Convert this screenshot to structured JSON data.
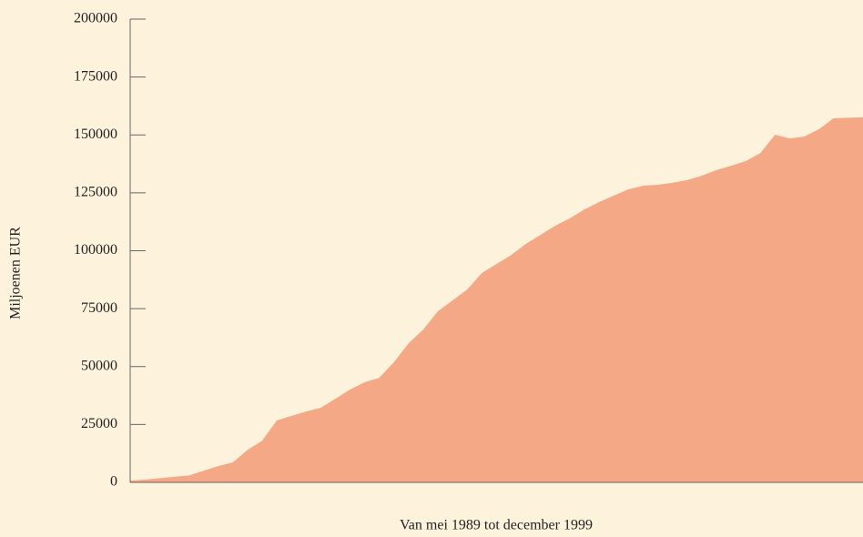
{
  "chart_data": {
    "type": "area",
    "ylabel": "Miljoenen EUR",
    "xlabel": "Van mei 1989 tot december 1999",
    "categories": [
      null,
      null,
      null,
      null,
      null,
      null,
      null,
      null,
      null,
      null,
      null,
      null,
      null,
      null,
      null,
      null,
      null,
      null,
      null,
      null,
      null,
      null,
      null,
      null,
      null,
      null,
      null,
      null,
      null,
      null,
      null,
      null,
      null,
      null,
      null,
      null,
      null,
      null,
      null,
      null,
      null,
      null,
      null,
      null,
      null,
      null,
      null,
      null,
      null,
      null,
      null
    ],
    "series": [
      {
        "name": null,
        "color": "#f5a886",
        "values": [
          800,
          1200,
          1800,
          2400,
          3000,
          5000,
          7000,
          8600,
          14000,
          18000,
          26700,
          28700,
          30600,
          32200,
          36100,
          40100,
          43200,
          45200,
          51900,
          60100,
          66000,
          73900,
          78600,
          83300,
          90400,
          94300,
          98200,
          103000,
          106900,
          110800,
          114000,
          117900,
          121000,
          123800,
          126500,
          128100,
          128500,
          129300,
          130500,
          132400,
          134800,
          136700,
          138700,
          142200,
          150100,
          148500,
          149300,
          152500,
          157200,
          157400,
          157600
        ]
      }
    ],
    "ylim": [
      0,
      200000
    ],
    "yticks": [
      0,
      25000,
      50000,
      75000,
      100000,
      125000,
      150000,
      175000,
      200000
    ]
  }
}
